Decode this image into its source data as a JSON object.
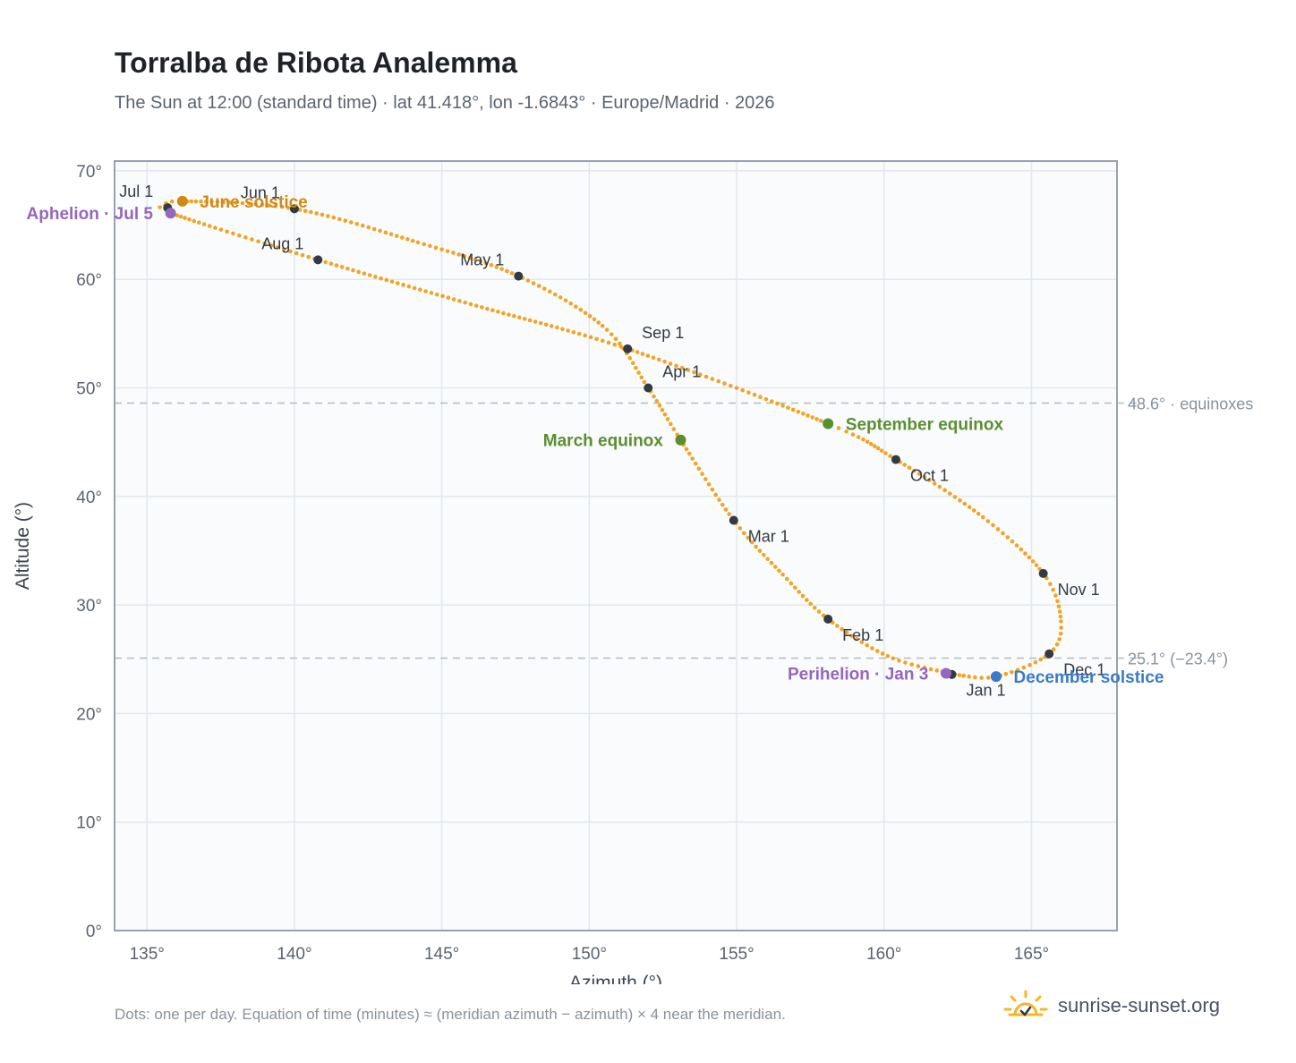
{
  "header": {
    "title": "Torralba de Ribota Analemma",
    "subtitle": "The Sun at 12:00 (standard time) · lat 41.418°, lon -1.6843° · Europe/Madrid · 2026"
  },
  "footer": {
    "note": "Dots: one per day. Equation of time (minutes) ≈ (meridian azimuth − azimuth) × 4 near the meridian.",
    "brand": "sunrise-sunset.org",
    "brand_icon": "sun-logo-icon"
  },
  "chart_data": {
    "type": "scatter",
    "xlabel": "Azimuth (°)",
    "ylabel": "Altitude (°)",
    "xlim": [
      133.9,
      167.9
    ],
    "ylim": [
      0,
      70.9
    ],
    "x_ticks": [
      135,
      140,
      145,
      150,
      155,
      160,
      165
    ],
    "x_tick_labels": [
      "135°",
      "140°",
      "145°",
      "150°",
      "155°",
      "160°",
      "165°"
    ],
    "y_ticks": [
      0,
      10,
      20,
      30,
      40,
      50,
      60,
      70
    ],
    "y_tick_labels": [
      "0°",
      "10°",
      "20°",
      "30°",
      "40°",
      "50°",
      "60°",
      "70°"
    ],
    "grid": true,
    "colors": {
      "path": "#f0a526",
      "month_dot": "#333a44",
      "solstice_june": "#d08a12",
      "solstice_december": "#3a7bc8",
      "equinox": "#5a8f2e",
      "apsis": "#9467bd",
      "reference_line": "#b4bcc6",
      "plot_background": "#f9fbfd",
      "grid": "#e3e8ee"
    },
    "reference_lines": [
      {
        "y": 48.6,
        "label": "48.6° · equinoxes"
      },
      {
        "y": 25.1,
        "label": "25.1° (−23.4°)"
      }
    ],
    "path_knots": [
      {
        "date": "Jan 1",
        "az": 162.4,
        "alt": 23.6
      },
      {
        "date": "Jan 15",
        "az": 160.2,
        "alt": 25.2
      },
      {
        "date": "Feb 1",
        "az": 158.1,
        "alt": 28.7
      },
      {
        "date": "Feb 15",
        "az": 156.6,
        "alt": 32.7
      },
      {
        "date": "Mar 1",
        "az": 154.9,
        "alt": 37.8
      },
      {
        "date": "Mar 20",
        "az": 153.1,
        "alt": 45.2
      },
      {
        "date": "Apr 1",
        "az": 152.0,
        "alt": 50.0
      },
      {
        "date": "Apr 15",
        "az": 150.5,
        "alt": 55.6
      },
      {
        "date": "May 1",
        "az": 147.6,
        "alt": 60.3
      },
      {
        "date": "May 15",
        "az": 144.2,
        "alt": 63.4
      },
      {
        "date": "Jun 1",
        "az": 140.0,
        "alt": 66.5
      },
      {
        "date": "Jun 21",
        "az": 136.2,
        "alt": 67.2
      },
      {
        "date": "Jul 1",
        "az": 135.6,
        "alt": 66.7
      },
      {
        "date": "Jul 5",
        "az": 135.8,
        "alt": 66.1
      },
      {
        "date": "Aug 1",
        "az": 140.8,
        "alt": 61.8
      },
      {
        "date": "Aug 15",
        "az": 146.0,
        "alt": 57.7
      },
      {
        "date": "Sep 1",
        "az": 151.3,
        "alt": 53.6
      },
      {
        "date": "Sep 22",
        "az": 158.1,
        "alt": 46.7
      },
      {
        "date": "Oct 1",
        "az": 160.4,
        "alt": 43.4
      },
      {
        "date": "Oct 15",
        "az": 163.3,
        "alt": 38.2
      },
      {
        "date": "Nov 1",
        "az": 165.4,
        "alt": 32.9
      },
      {
        "date": "Nov 15",
        "az": 166.0,
        "alt": 28.5
      },
      {
        "date": "Dec 1",
        "az": 165.6,
        "alt": 25.5
      },
      {
        "date": "Dec 21",
        "az": 163.8,
        "alt": 23.4
      },
      {
        "date": "Dec 31",
        "az": 162.5,
        "alt": 23.55
      }
    ],
    "month_markers": [
      {
        "label": "Jan 1",
        "az": 162.3,
        "alt": 23.6,
        "label_pos": "below-right"
      },
      {
        "label": "Feb 1",
        "az": 158.1,
        "alt": 28.7,
        "label_pos": "below-right"
      },
      {
        "label": "Mar 1",
        "az": 154.9,
        "alt": 37.8,
        "label_pos": "below-right"
      },
      {
        "label": "Apr 1",
        "az": 152.0,
        "alt": 50.0,
        "label_pos": "above-right"
      },
      {
        "label": "May 1",
        "az": 147.6,
        "alt": 60.3,
        "label_pos": "above-left"
      },
      {
        "label": "Jun 1",
        "az": 140.0,
        "alt": 66.5,
        "label_pos": "above-left"
      },
      {
        "label": "Jul 1",
        "az": 135.7,
        "alt": 66.6,
        "label_pos": "above-left"
      },
      {
        "label": "Aug 1",
        "az": 140.8,
        "alt": 61.8,
        "label_pos": "above-left"
      },
      {
        "label": "Sep 1",
        "az": 151.3,
        "alt": 53.6,
        "label_pos": "above-right"
      },
      {
        "label": "Oct 1",
        "az": 160.4,
        "alt": 43.4,
        "label_pos": "below-right"
      },
      {
        "label": "Nov 1",
        "az": 165.4,
        "alt": 32.9,
        "label_pos": "below-right"
      },
      {
        "label": "Dec 1",
        "az": 165.6,
        "alt": 25.5,
        "label_pos": "below-right"
      }
    ],
    "events": [
      {
        "label": "June solstice",
        "az": 136.2,
        "alt": 67.2,
        "kind": "solstice_june",
        "label_pos": "right"
      },
      {
        "label": "December solstice",
        "az": 163.8,
        "alt": 23.4,
        "kind": "solstice_december",
        "label_pos": "right"
      },
      {
        "label": "March equinox",
        "az": 153.1,
        "alt": 45.2,
        "kind": "equinox",
        "label_pos": "left"
      },
      {
        "label": "September equinox",
        "az": 158.1,
        "alt": 46.7,
        "kind": "equinox",
        "label_pos": "right"
      },
      {
        "label": "Aphelion · Jul 5",
        "az": 135.8,
        "alt": 66.1,
        "kind": "apsis",
        "label_pos": "left"
      },
      {
        "label": "Perihelion · Jan 3",
        "az": 162.1,
        "alt": 23.7,
        "kind": "apsis",
        "label_pos": "left"
      }
    ]
  }
}
